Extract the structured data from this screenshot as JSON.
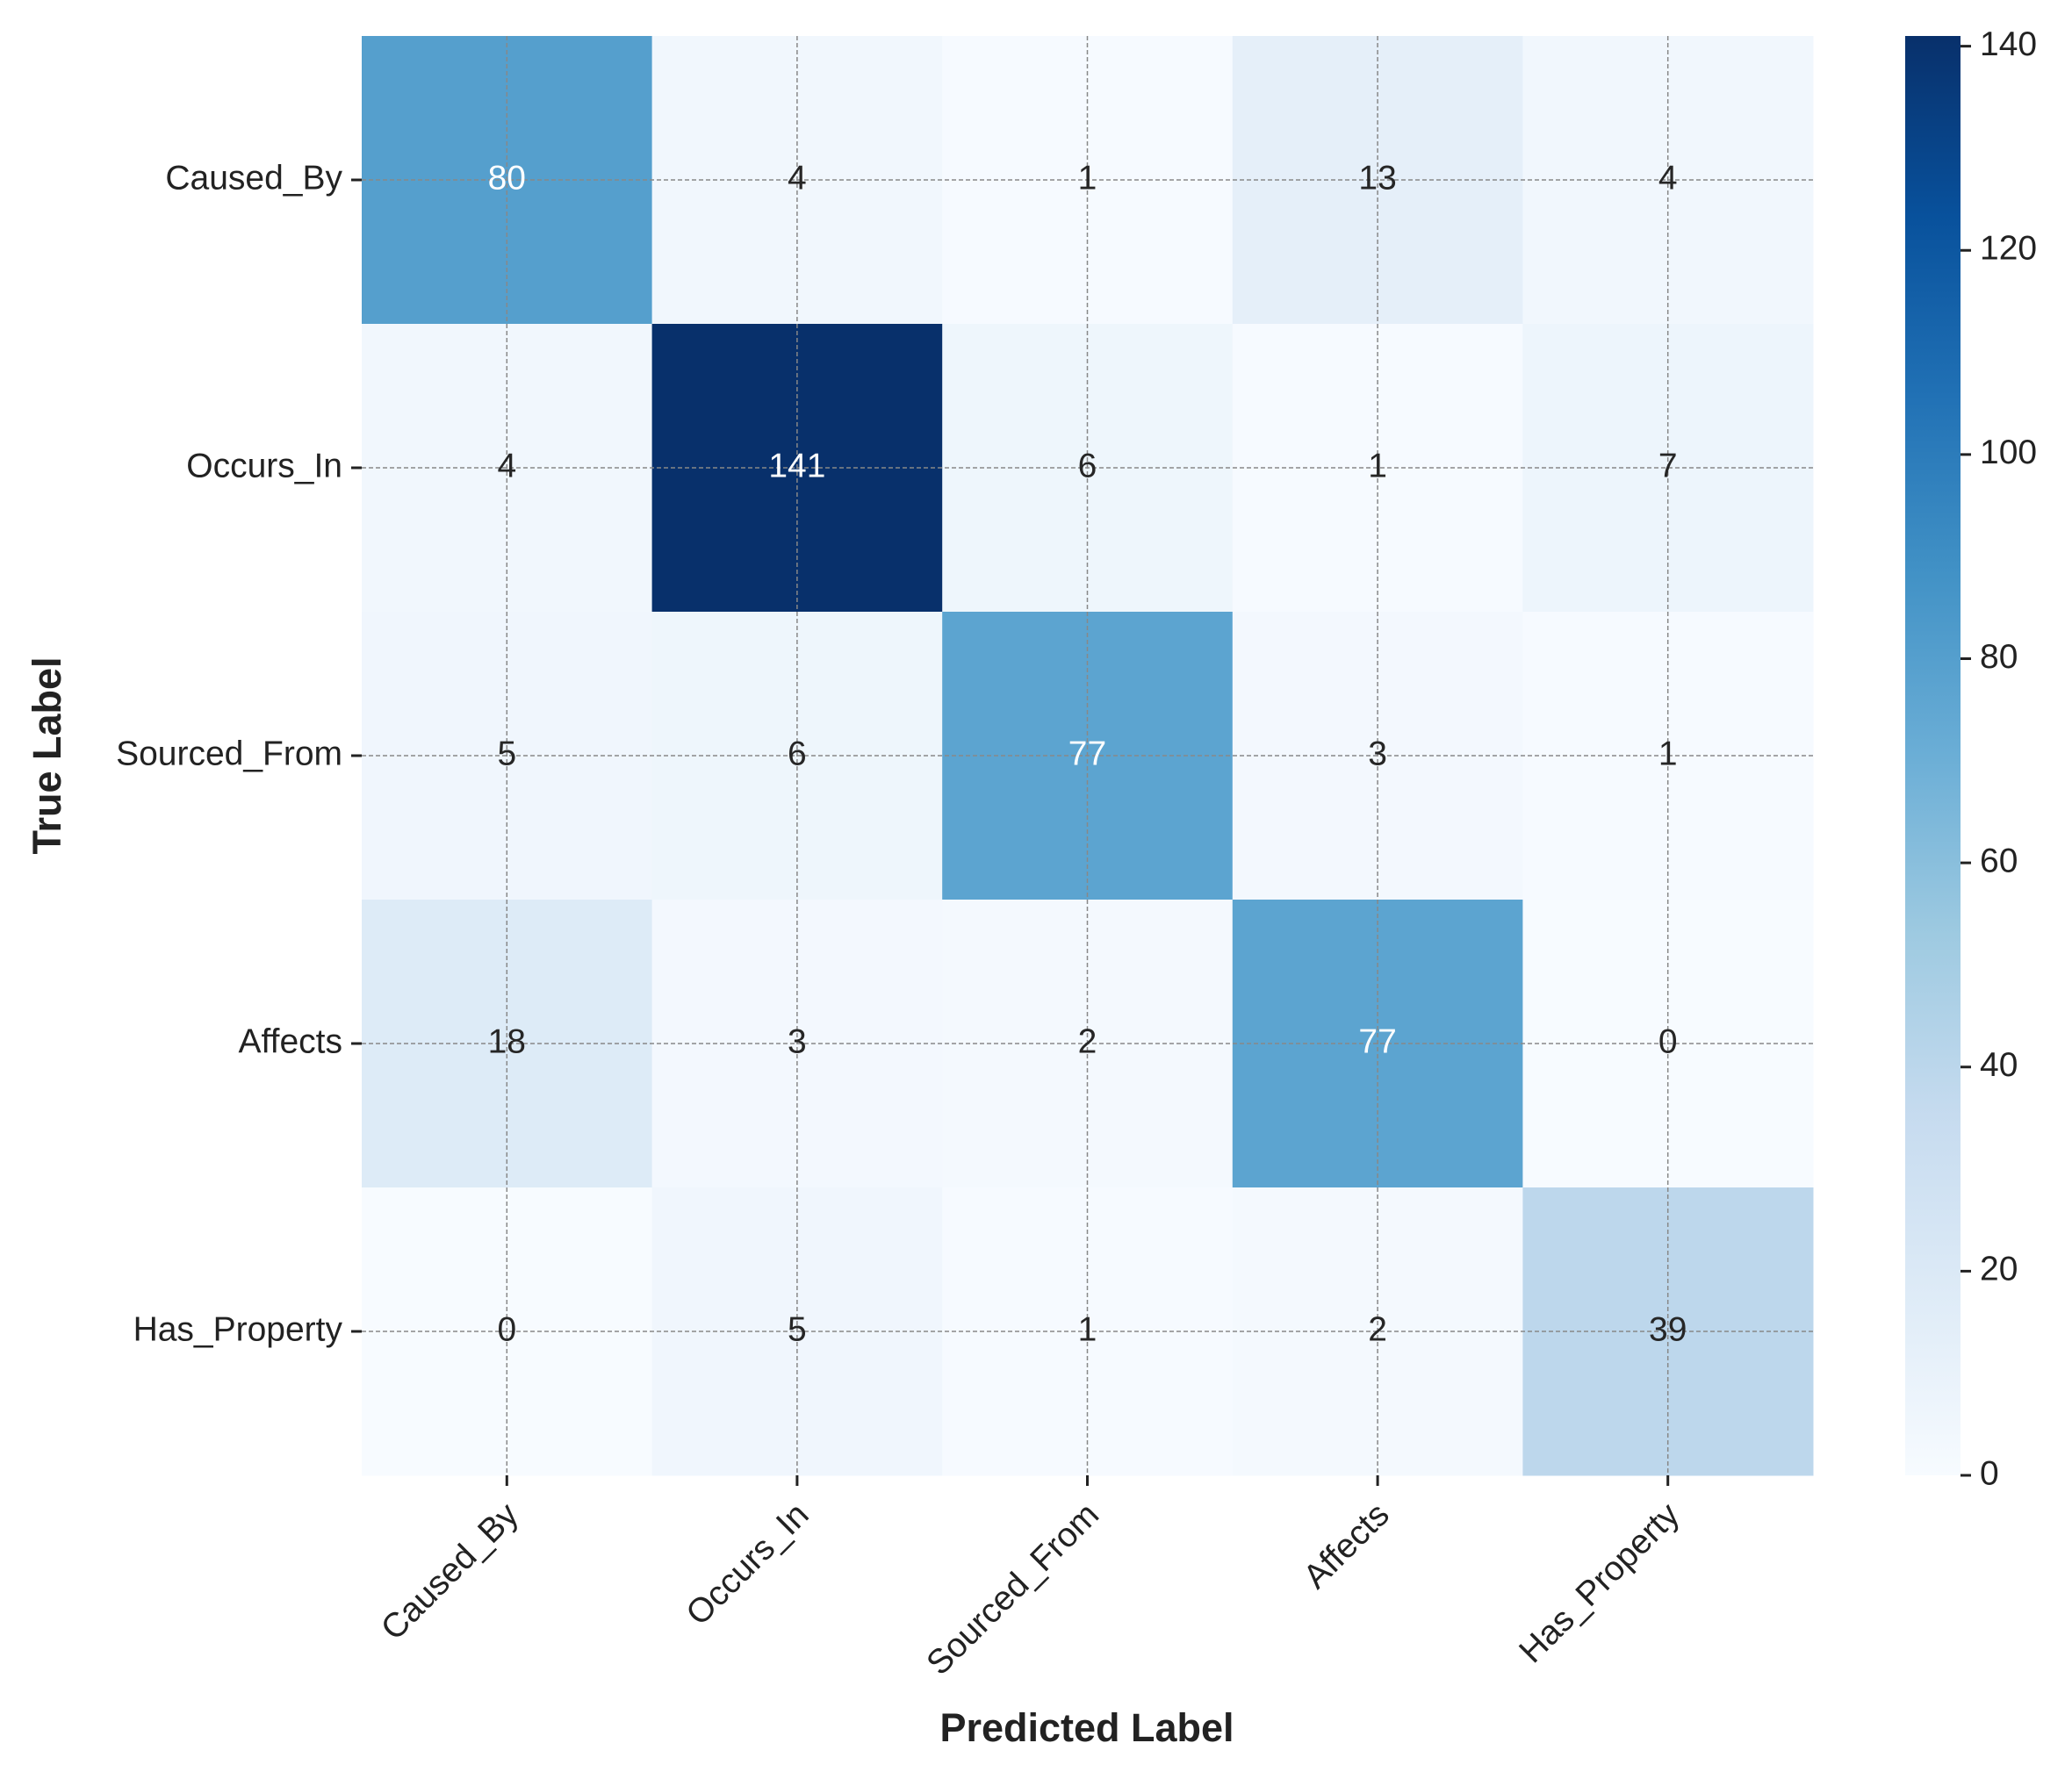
{
  "chart_data": {
    "type": "heatmap",
    "xlabel": "Predicted Label",
    "ylabel": "True Label",
    "x_categories": [
      "Caused_By",
      "Occurs_In",
      "Sourced_From",
      "Affects",
      "Has_Property"
    ],
    "y_categories": [
      "Caused_By",
      "Occurs_In",
      "Sourced_From",
      "Affects",
      "Has_Property"
    ],
    "values": [
      [
        80,
        4,
        1,
        13,
        4
      ],
      [
        4,
        141,
        6,
        1,
        7
      ],
      [
        5,
        6,
        77,
        3,
        1
      ],
      [
        18,
        3,
        2,
        77,
        0
      ],
      [
        0,
        5,
        1,
        2,
        39
      ]
    ],
    "colormap": [
      "#f7fbff",
      "#deebf7",
      "#c6dbef",
      "#9ecae1",
      "#6baed6",
      "#4292c6",
      "#2171b5",
      "#08519c",
      "#08306b"
    ],
    "clim": [
      0,
      141
    ],
    "cticks": [
      0,
      20,
      40,
      60,
      80,
      100,
      120,
      140
    ],
    "grid": true
  }
}
